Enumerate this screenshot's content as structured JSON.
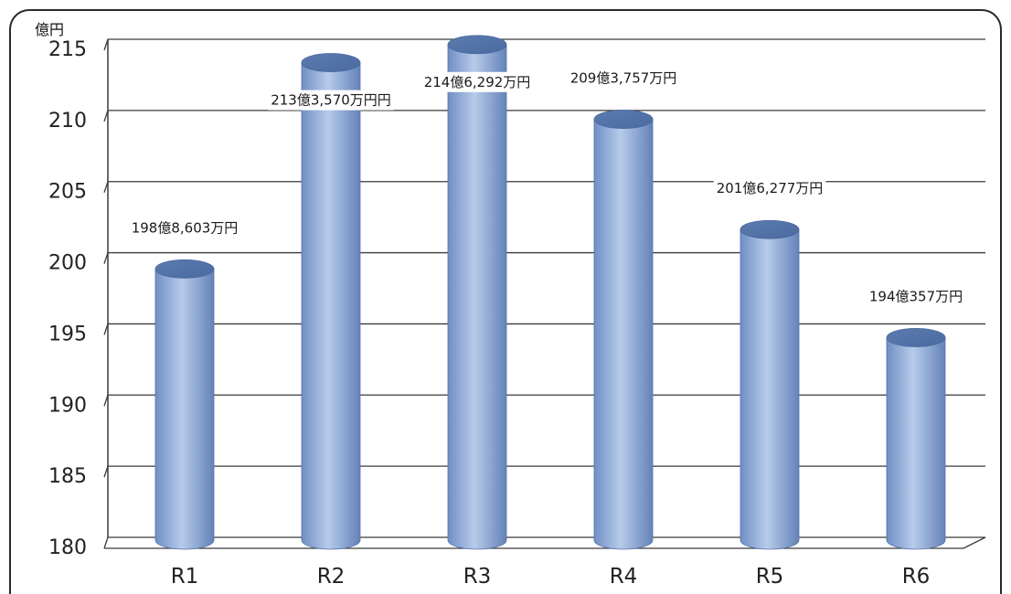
{
  "chart_data": {
    "type": "bar",
    "unit_label": "億円",
    "categories": [
      "R1",
      "R2",
      "R3",
      "R4",
      "R5",
      "R6"
    ],
    "values": [
      198.8603,
      213.357,
      214.6292,
      209.3757,
      201.6277,
      194.0357
    ],
    "data_labels": [
      "198億8,603万円",
      "213億3,570万円円",
      "214億6,292万円",
      "209億3,757万円",
      "201億6,277万円",
      "194億357万円"
    ],
    "ylim": [
      180,
      215
    ],
    "yticks": [
      180,
      185,
      190,
      195,
      200,
      205,
      210,
      215
    ],
    "grid": true,
    "colors": {
      "bar_light": "#b9cdec",
      "bar_mid": "#8eaadb",
      "bar_dark": "#5f7fb4",
      "grid": "#3a3a3a"
    }
  }
}
